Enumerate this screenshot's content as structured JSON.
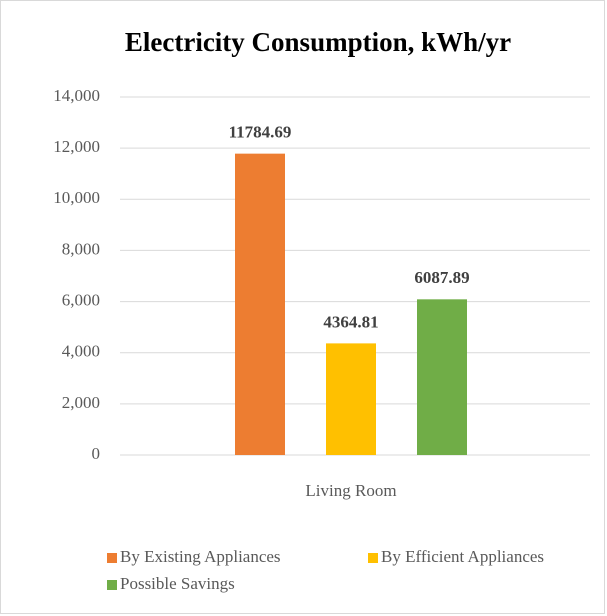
{
  "chart_data": {
    "type": "bar",
    "title": "Electricity Consumption, kWh/yr",
    "categories": [
      "Living Room"
    ],
    "series": [
      {
        "name": "By Existing Appliances",
        "color": "#ed7d31",
        "values": [
          11784.69
        ]
      },
      {
        "name": "By Efficient Appliances",
        "color": "#ffc000",
        "values": [
          4364.81
        ]
      },
      {
        "name": "Possible Savings",
        "color": "#70ad47",
        "values": [
          6087.89
        ]
      }
    ],
    "ylim": [
      0,
      14000
    ],
    "yticks": [
      0,
      {
        "value": 2000,
        "label": "2,000"
      },
      {
        "value": 4000,
        "label": "4,000"
      },
      {
        "value": 6000,
        "label": "6,000"
      },
      {
        "value": 8000,
        "label": "8,000"
      },
      {
        "value": 10000,
        "label": "10,000"
      },
      {
        "value": 12000,
        "label": "12,000"
      },
      {
        "value": 14000,
        "label": "14,000"
      }
    ],
    "grid": true,
    "legend": "bottom"
  }
}
